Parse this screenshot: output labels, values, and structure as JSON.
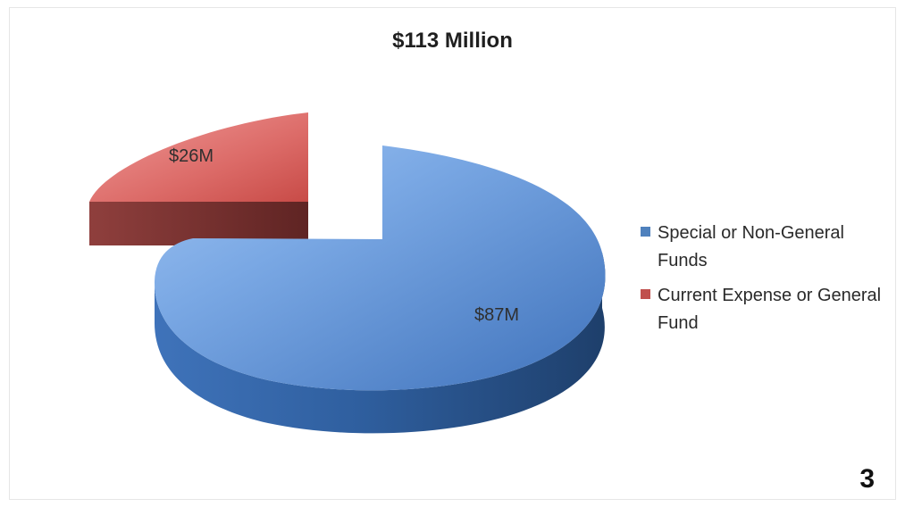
{
  "chart_data": {
    "type": "pie",
    "title": "$113 Million",
    "slices": [
      {
        "name": "Special or Non-General Funds",
        "value": 87,
        "label": "$87M",
        "color": "#4f81bd"
      },
      {
        "name": "Current Expense or General Fund",
        "value": 26,
        "label": "$26M",
        "color": "#c0504d"
      }
    ],
    "legend_position": "right",
    "exploded_slice": "Current Expense or General Fund",
    "style": "3d"
  },
  "page": {
    "number": "3"
  },
  "colors": {
    "blue": "#4f81bd",
    "red": "#c0504d"
  }
}
